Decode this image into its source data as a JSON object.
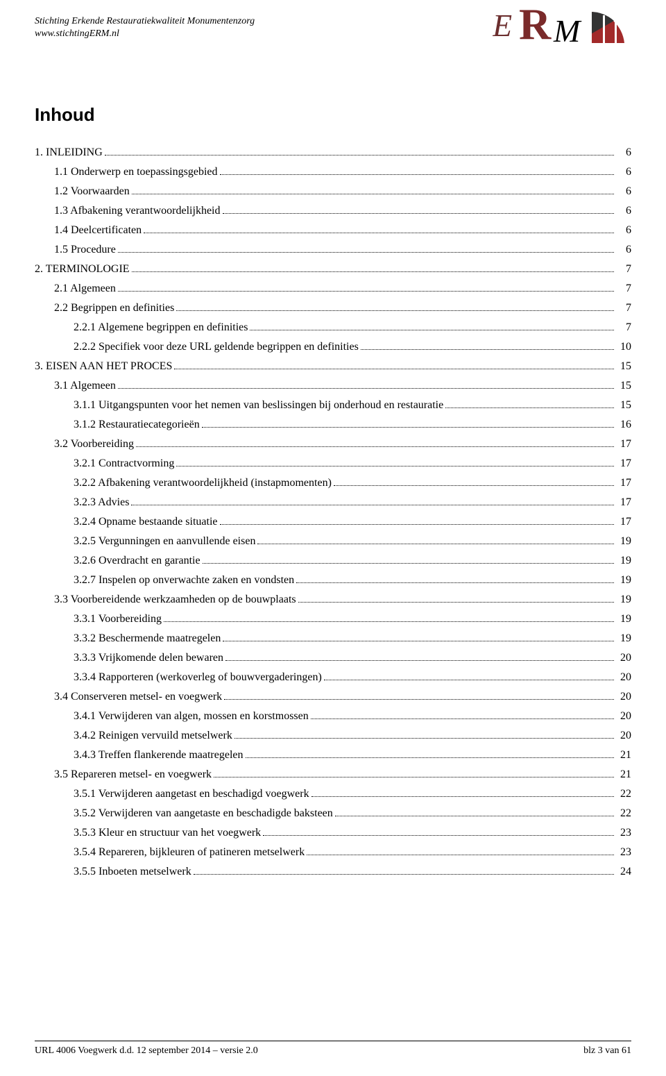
{
  "header": {
    "org_line1": "Stichting Erkende Restauratiekwaliteit Monumentenzorg",
    "org_line2": "www.stichtingERM.nl"
  },
  "logo": {
    "letter_E": "E",
    "letter_R": "R",
    "letter_M": "M",
    "colors": {
      "E": "#6b2e2e",
      "R": "#7a2a2a",
      "M": "#000000",
      "shape": "#a22a2a",
      "shape_accent": "#333333"
    }
  },
  "title": "Inhoud",
  "toc": [
    {
      "text": "1. INLEIDING",
      "page": "6",
      "level": 0
    },
    {
      "text": "1.1 Onderwerp en toepassingsgebied",
      "page": "6",
      "level": 1
    },
    {
      "text": "1.2 Voorwaarden",
      "page": "6",
      "level": 1
    },
    {
      "text": "1.3 Afbakening verantwoordelijkheid",
      "page": "6",
      "level": 1
    },
    {
      "text": "1.4 Deelcertificaten",
      "page": "6",
      "level": 1
    },
    {
      "text": "1.5 Procedure",
      "page": "6",
      "level": 1
    },
    {
      "text": "2. TERMINOLOGIE",
      "page": "7",
      "level": 0
    },
    {
      "text": "2.1 Algemeen",
      "page": "7",
      "level": 1
    },
    {
      "text": "2.2 Begrippen en definities",
      "page": "7",
      "level": 1
    },
    {
      "text": "2.2.1 Algemene begrippen en definities",
      "page": "7",
      "level": 2
    },
    {
      "text": "2.2.2 Specifiek voor deze URL geldende begrippen en definities",
      "page": "10",
      "level": 2
    },
    {
      "text": "3. EISEN AAN HET PROCES",
      "page": "15",
      "level": 0
    },
    {
      "text": "3.1 Algemeen",
      "page": "15",
      "level": 1
    },
    {
      "text": "3.1.1 Uitgangspunten voor het nemen van beslissingen bij onderhoud en restauratie",
      "page": "15",
      "level": 2
    },
    {
      "text": "3.1.2 Restauratiecategorieën",
      "page": "16",
      "level": 2
    },
    {
      "text": "3.2 Voorbereiding",
      "page": "17",
      "level": 1
    },
    {
      "text": "3.2.1 Contractvorming",
      "page": "17",
      "level": 2
    },
    {
      "text": "3.2.2 Afbakening verantwoordelijkheid (instapmomenten)",
      "page": "17",
      "level": 2
    },
    {
      "text": "3.2.3 Advies",
      "page": "17",
      "level": 2
    },
    {
      "text": "3.2.4 Opname bestaande situatie",
      "page": "17",
      "level": 2
    },
    {
      "text": "3.2.5 Vergunningen en aanvullende eisen",
      "page": "19",
      "level": 2
    },
    {
      "text": "3.2.6 Overdracht en garantie",
      "page": "19",
      "level": 2
    },
    {
      "text": "3.2.7 Inspelen op onverwachte zaken en vondsten",
      "page": "19",
      "level": 2
    },
    {
      "text": "3.3 Voorbereidende werkzaamheden op de bouwplaats",
      "page": "19",
      "level": 1
    },
    {
      "text": "3.3.1 Voorbereiding",
      "page": "19",
      "level": 2
    },
    {
      "text": "3.3.2 Beschermende maatregelen",
      "page": "19",
      "level": 2
    },
    {
      "text": "3.3.3 Vrijkomende delen bewaren",
      "page": "20",
      "level": 2
    },
    {
      "text": "3.3.4 Rapporteren (werkoverleg of bouwvergaderingen)",
      "page": "20",
      "level": 2
    },
    {
      "text": "3.4 Conserveren metsel- en voegwerk",
      "page": "20",
      "level": 1
    },
    {
      "text": "3.4.1 Verwijderen van algen, mossen en korstmossen",
      "page": "20",
      "level": 2
    },
    {
      "text": "3.4.2 Reinigen vervuild metselwerk",
      "page": "20",
      "level": 2
    },
    {
      "text": "3.4.3 Treffen flankerende maatregelen",
      "page": "21",
      "level": 2
    },
    {
      "text": "3.5 Repareren metsel- en voegwerk",
      "page": "21",
      "level": 1
    },
    {
      "text": "3.5.1 Verwijderen aangetast en beschadigd voegwerk",
      "page": "22",
      "level": 2
    },
    {
      "text": "3.5.2 Verwijderen van aangetaste en beschadigde baksteen",
      "page": "22",
      "level": 2
    },
    {
      "text": "3.5.3 Kleur en structuur van het voegwerk",
      "page": "23",
      "level": 2
    },
    {
      "text": "3.5.4 Repareren, bijkleuren of patineren metselwerk",
      "page": "23",
      "level": 2
    },
    {
      "text": "3.5.5 Inboeten metselwerk",
      "page": "24",
      "level": 2
    }
  ],
  "footer": {
    "left": "URL  4006  Voegwerk  d.d. 12 september 2014 – versie 2.0",
    "right": "blz 3 van 61"
  }
}
